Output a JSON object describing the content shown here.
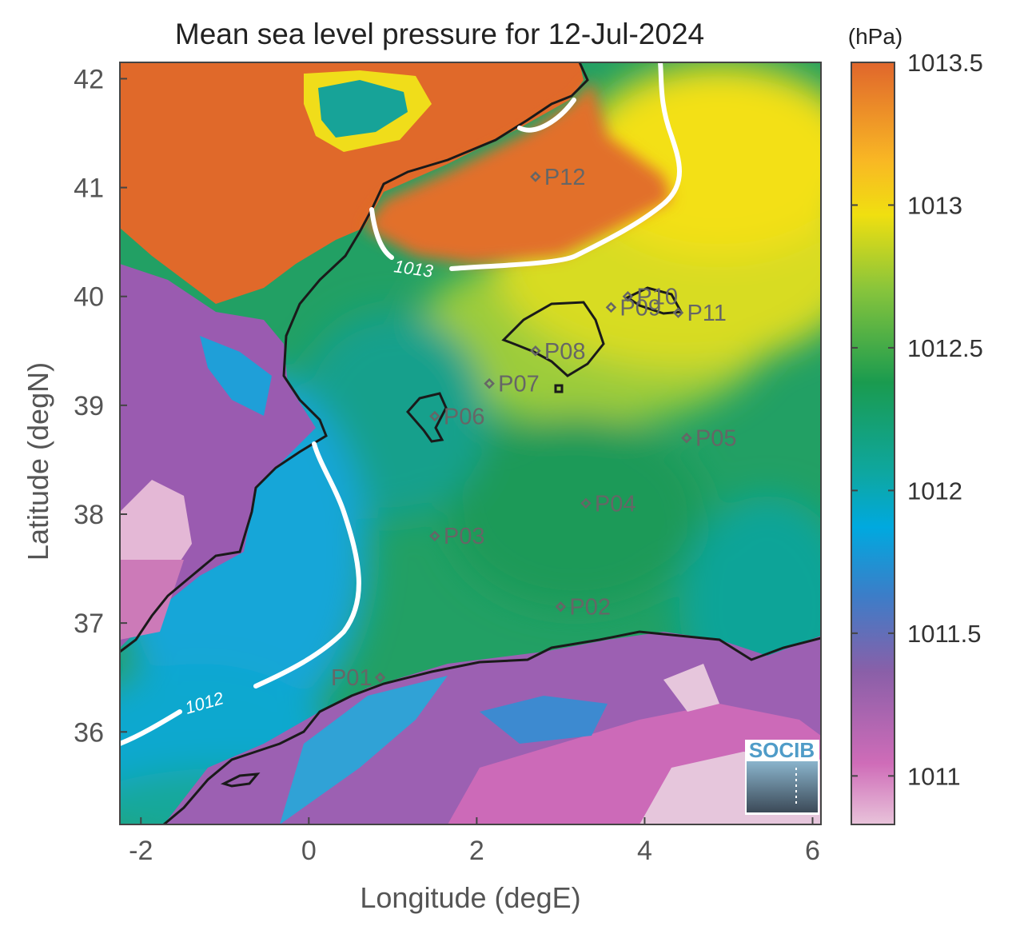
{
  "title": "Mean sea level pressure for 12-Jul-2024",
  "xlabel": "Longitude (degE)",
  "ylabel": "Latitude (degN)",
  "colorbar": {
    "unit": "(hPa)",
    "range": [
      1010.83,
      1013.5
    ],
    "ticks": [
      "1013.5",
      "1013",
      "1012.5",
      "1012",
      "1011.5",
      "1011"
    ],
    "tick_values": [
      1013.5,
      1013,
      1012.5,
      1012,
      1011.5,
      1011
    ],
    "colors": [
      "#e8c3da",
      "#cf6cb8",
      "#8a5fa8",
      "#2f8fd0",
      "#00a9df",
      "#0ea7a1",
      "#1a9b4f",
      "#86c43c",
      "#f0df10",
      "#fbd400",
      "#f5a623",
      "#e06a2a"
    ]
  },
  "x_axis": {
    "range": [
      -2.25,
      6.1
    ],
    "ticks": [
      "-2",
      "0",
      "2",
      "4",
      "6"
    ],
    "tick_values": [
      -2,
      0,
      2,
      4,
      6
    ]
  },
  "y_axis": {
    "range": [
      35.15,
      42.15
    ],
    "ticks": [
      "42",
      "41",
      "40",
      "39",
      "38",
      "37",
      "36"
    ],
    "tick_values": [
      42,
      41,
      40,
      39,
      38,
      37,
      36
    ]
  },
  "contour_labels": [
    "1013",
    "1012"
  ],
  "stations": [
    {
      "label": "P01",
      "lon": 0.85,
      "lat": 36.5
    },
    {
      "label": "P02",
      "lon": 3.0,
      "lat": 37.15
    },
    {
      "label": "P03",
      "lon": 1.5,
      "lat": 37.8
    },
    {
      "label": "P04",
      "lon": 3.3,
      "lat": 38.1
    },
    {
      "label": "P05",
      "lon": 4.5,
      "lat": 38.7
    },
    {
      "label": "P06",
      "lon": 1.5,
      "lat": 38.9
    },
    {
      "label": "P07",
      "lon": 2.15,
      "lat": 39.2
    },
    {
      "label": "P08",
      "lon": 2.7,
      "lat": 39.5
    },
    {
      "label": "P09",
      "lon": 3.6,
      "lat": 39.9
    },
    {
      "label": "P10",
      "lon": 3.8,
      "lat": 40.0
    },
    {
      "label": "P11",
      "lon": 4.4,
      "lat": 39.85
    },
    {
      "label": "P12",
      "lon": 2.7,
      "lat": 41.1
    }
  ],
  "logo": {
    "text": "SOCIB"
  },
  "colors": {
    "coastline": "#1a1a1a",
    "contour": "#ffffff",
    "station": "#666666",
    "axis_text": "#555555"
  }
}
